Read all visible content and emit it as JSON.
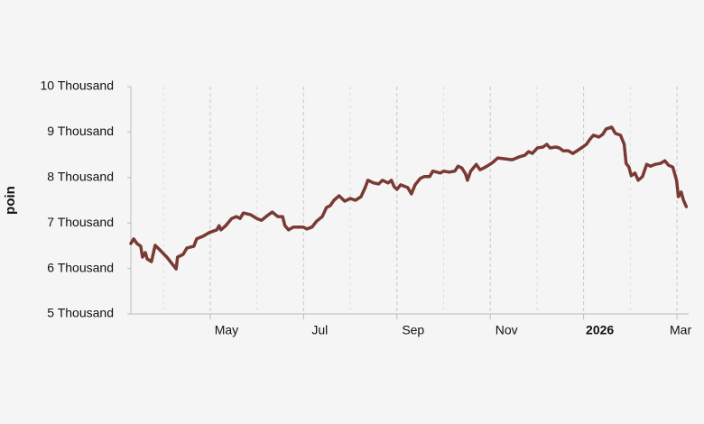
{
  "chart_data": {
    "type": "line",
    "y_label": "poin",
    "color": "#7a3a34",
    "x": [
      3.3,
      3.36,
      3.43,
      3.51,
      3.55,
      3.61,
      3.65,
      3.74,
      3.82,
      3.9,
      4.07,
      4.27,
      4.3,
      4.42,
      4.5,
      4.65,
      4.71,
      4.85,
      4.98,
      5.14,
      5.19,
      5.23,
      5.33,
      5.46,
      5.56,
      5.64,
      5.71,
      5.87,
      6.0,
      6.1,
      6.22,
      6.33,
      6.45,
      6.55,
      6.6,
      6.68,
      6.78,
      6.87,
      6.99,
      7.07,
      7.18,
      7.28,
      7.4,
      7.49,
      7.57,
      7.65,
      7.76,
      7.88,
      8.0,
      8.11,
      8.23,
      8.32,
      8.38,
      8.5,
      8.61,
      8.69,
      8.81,
      8.88,
      8.94,
      9.0,
      9.08,
      9.23,
      9.31,
      9.39,
      9.5,
      9.58,
      9.7,
      9.77,
      9.93,
      10.0,
      10.12,
      10.24,
      10.31,
      10.39,
      10.47,
      10.51,
      10.58,
      10.7,
      10.78,
      10.86,
      10.93,
      11.05,
      11.16,
      11.32,
      11.47,
      11.61,
      11.74,
      11.82,
      11.9,
      12.01,
      12.13,
      12.21,
      12.28,
      12.4,
      12.48,
      12.56,
      12.67,
      12.77,
      12.86,
      12.98,
      13.06,
      13.14,
      13.21,
      13.33,
      13.41,
      13.48,
      13.6,
      13.68,
      13.79,
      13.87,
      13.91,
      13.97,
      14.02,
      14.1,
      14.17,
      14.26,
      14.35,
      14.43,
      14.53,
      14.64,
      14.74,
      14.82,
      14.91,
      14.99,
      15.03,
      15.09,
      15.14,
      15.2
    ],
    "values": [
      6550,
      6650,
      6550,
      6490,
      6250,
      6350,
      6210,
      6150,
      6510,
      6430,
      6250,
      5990,
      6250,
      6310,
      6450,
      6490,
      6650,
      6710,
      6790,
      6850,
      6940,
      6850,
      6940,
      7100,
      7140,
      7100,
      7220,
      7180,
      7100,
      7060,
      7160,
      7240,
      7140,
      7140,
      6940,
      6850,
      6910,
      6910,
      6910,
      6870,
      6910,
      7040,
      7140,
      7340,
      7380,
      7500,
      7600,
      7480,
      7540,
      7500,
      7580,
      7780,
      7940,
      7880,
      7860,
      7940,
      7880,
      7940,
      7800,
      7740,
      7840,
      7780,
      7640,
      7840,
      7980,
      8020,
      8020,
      8140,
      8100,
      8140,
      8120,
      8140,
      8250,
      8210,
      8080,
      7940,
      8140,
      8290,
      8170,
      8210,
      8250,
      8330,
      8430,
      8410,
      8390,
      8450,
      8490,
      8570,
      8530,
      8650,
      8670,
      8730,
      8650,
      8670,
      8650,
      8590,
      8590,
      8530,
      8590,
      8670,
      8730,
      8850,
      8930,
      8890,
      8950,
      9070,
      9110,
      8970,
      8930,
      8730,
      8310,
      8230,
      8040,
      8100,
      7940,
      8020,
      8290,
      8250,
      8290,
      8310,
      8370,
      8270,
      8230,
      7940,
      7580,
      7680,
      7500,
      7360
    ],
    "xlim": [
      3.3,
      15.25
    ],
    "xticks": [
      {
        "value": 5,
        "label": "May"
      },
      {
        "value": 7,
        "label": "Jul"
      },
      {
        "value": 9,
        "label": "Sep"
      },
      {
        "value": 11,
        "label": "Nov"
      },
      {
        "value": 13,
        "label": "2026",
        "bold": true
      },
      {
        "value": 15,
        "label": "Mar"
      }
    ],
    "xminor": [
      4,
      6,
      8,
      10,
      12,
      14
    ],
    "ylim": [
      5000,
      10000
    ],
    "yticks": [
      {
        "value": 5000,
        "label": "5 Thousand"
      },
      {
        "value": 6000,
        "label": "6 Thousand"
      },
      {
        "value": 7000,
        "label": "7 Thousand"
      },
      {
        "value": 8000,
        "label": "8 Thousand"
      },
      {
        "value": 9000,
        "label": "9 Thousand"
      },
      {
        "value": 10000,
        "label": "10 Thousand"
      }
    ],
    "grid": true
  }
}
